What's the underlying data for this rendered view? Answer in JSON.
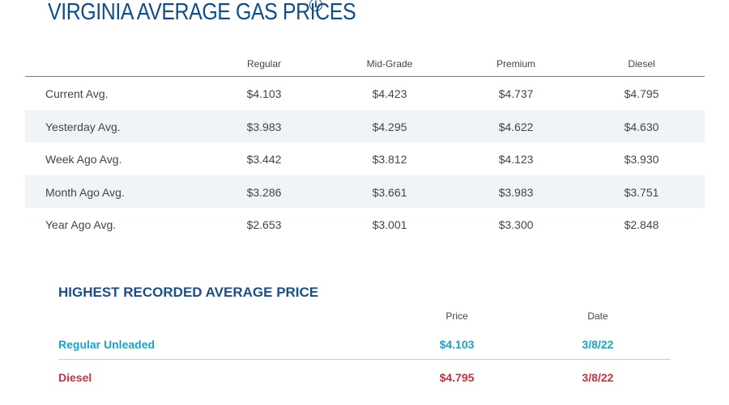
{
  "header": {
    "title": "VIRGINIA AVERAGE GAS PRICES",
    "info_icon": "info-icon",
    "title_color": "#0f4d8f"
  },
  "prices": {
    "columns": [
      "Regular",
      "Mid-Grade",
      "Premium",
      "Diesel"
    ],
    "rows": [
      {
        "label": "Current Avg.",
        "values": [
          "$4.103",
          "$4.423",
          "$4.737",
          "$4.795"
        ]
      },
      {
        "label": "Yesterday Avg.",
        "values": [
          "$3.983",
          "$4.295",
          "$4.622",
          "$4.630"
        ]
      },
      {
        "label": "Week Ago Avg.",
        "values": [
          "$3.442",
          "$3.812",
          "$4.123",
          "$3.930"
        ]
      },
      {
        "label": "Month Ago Avg.",
        "values": [
          "$3.286",
          "$3.661",
          "$3.983",
          "$3.751"
        ]
      },
      {
        "label": "Year Ago Avg.",
        "values": [
          "$2.653",
          "$3.001",
          "$3.300",
          "$2.848"
        ]
      }
    ],
    "shaded_row_color": "#f0f4f9"
  },
  "highest": {
    "title": "HIGHEST RECORDED AVERAGE PRICE",
    "columns": [
      "Price",
      "Date"
    ],
    "rows": [
      {
        "label": "Regular Unleaded",
        "price": "$4.103",
        "date": "3/8/22",
        "color": "#1aa3c8"
      },
      {
        "label": "Diesel",
        "price": "$4.795",
        "date": "3/8/22",
        "color": "#c8323c"
      }
    ]
  }
}
